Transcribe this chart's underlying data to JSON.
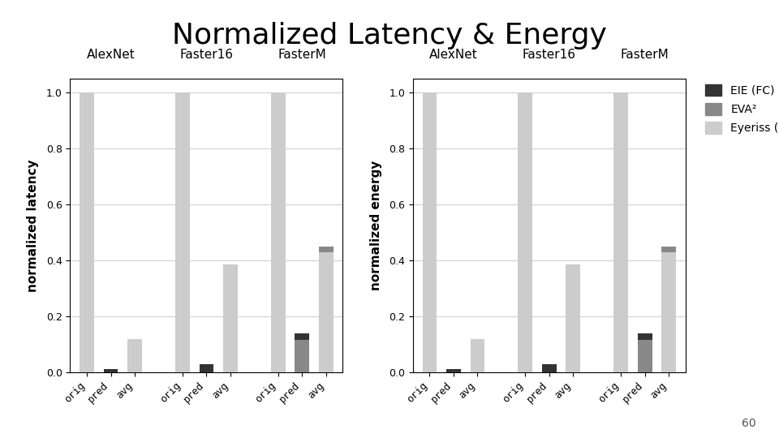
{
  "title": "Normalized Latency & Energy",
  "title_fontsize": 26,
  "groups": [
    "AlexNet",
    "Faster16",
    "FasterM"
  ],
  "bars": [
    "orig",
    "pred",
    "avg"
  ],
  "color_eie": "#333333",
  "color_eva": "#888888",
  "color_eyeriss": "#cccccc",
  "legend_labels": [
    "EIE (FC)",
    "EVA²",
    "Eyeriss (conv)"
  ],
  "ylabel_left": "normalized latency",
  "ylabel_right": "normalized energy",
  "ylim": [
    0.0,
    1.05
  ],
  "yticks": [
    0.0,
    0.2,
    0.4,
    0.6,
    0.8,
    1.0
  ],
  "note": "60",
  "latency": {
    "AlexNet": {
      "orig": {
        "eie": 0.0,
        "eva": 0.0,
        "eyeriss": 1.0
      },
      "pred": {
        "eie": 0.013,
        "eva": 0.0,
        "eyeriss": 0.0
      },
      "avg": {
        "eie": 0.0,
        "eva": 0.0,
        "eyeriss": 0.12
      }
    },
    "Faster16": {
      "orig": {
        "eie": 0.0,
        "eva": 0.0,
        "eyeriss": 1.0
      },
      "pred": {
        "eie": 0.03,
        "eva": 0.0,
        "eyeriss": 0.0
      },
      "avg": {
        "eie": 0.0,
        "eva": 0.0,
        "eyeriss": 0.385
      }
    },
    "FasterM": {
      "orig": {
        "eie": 0.0,
        "eva": 0.0,
        "eyeriss": 1.0
      },
      "pred": {
        "eie": 0.025,
        "eva": 0.115,
        "eyeriss": 0.0
      },
      "avg": {
        "eie": 0.0,
        "eva": 0.02,
        "eyeriss": 0.43
      }
    }
  },
  "energy": {
    "AlexNet": {
      "orig": {
        "eie": 0.0,
        "eva": 0.0,
        "eyeriss": 1.0
      },
      "pred": {
        "eie": 0.013,
        "eva": 0.0,
        "eyeriss": 0.0
      },
      "avg": {
        "eie": 0.0,
        "eva": 0.0,
        "eyeriss": 0.12
      }
    },
    "Faster16": {
      "orig": {
        "eie": 0.0,
        "eva": 0.0,
        "eyeriss": 1.0
      },
      "pred": {
        "eie": 0.03,
        "eva": 0.0,
        "eyeriss": 0.0
      },
      "avg": {
        "eie": 0.0,
        "eva": 0.0,
        "eyeriss": 0.385
      }
    },
    "FasterM": {
      "orig": {
        "eie": 0.0,
        "eva": 0.0,
        "eyeriss": 1.0
      },
      "pred": {
        "eie": 0.025,
        "eva": 0.115,
        "eyeriss": 0.0
      },
      "avg": {
        "eie": 0.0,
        "eva": 0.02,
        "eyeriss": 0.43
      }
    }
  }
}
